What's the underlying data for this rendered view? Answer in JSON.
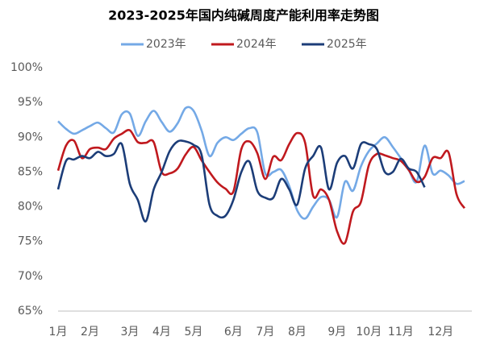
{
  "chart_data": {
    "type": "line",
    "title": "2023-2025年国内纯碱周度产能利用率走势图",
    "categories": [
      "1月",
      null,
      null,
      null,
      "2月",
      null,
      null,
      null,
      null,
      "3月",
      null,
      null,
      null,
      "4月",
      null,
      null,
      null,
      "5月",
      null,
      null,
      null,
      null,
      "6月",
      null,
      null,
      null,
      "7月",
      null,
      null,
      null,
      "8月",
      null,
      null,
      null,
      null,
      "9月",
      null,
      null,
      null,
      "10月",
      null,
      null,
      null,
      "11月",
      null,
      null,
      null,
      null,
      "12月",
      null,
      null,
      null
    ],
    "series": [
      {
        "name": "2023年",
        "color": "#74a9e6",
        "values": [
          92.3,
          91.2,
          90.5,
          91.0,
          91.6,
          92.1,
          91.3,
          90.7,
          93.3,
          93.4,
          90.2,
          92.3,
          93.8,
          92.2,
          90.8,
          92.0,
          94.2,
          93.8,
          91.0,
          87.3,
          89.2,
          90.0,
          89.6,
          90.5,
          91.3,
          90.7,
          84.8,
          85.0,
          85.3,
          83.0,
          79.5,
          78.3,
          80.0,
          81.4,
          81.0,
          78.5,
          83.6,
          82.3,
          85.8,
          88.0,
          89.1,
          90.0,
          88.6,
          87.0,
          85.3,
          83.6,
          88.8,
          84.8,
          85.2,
          84.5,
          83.3,
          83.7
        ]
      },
      {
        "name": "2024年",
        "color": "#c0191e",
        "values": [
          85.2,
          88.8,
          89.5,
          87.0,
          88.3,
          88.5,
          88.3,
          89.8,
          90.5,
          91.0,
          89.3,
          89.2,
          89.3,
          85.0,
          84.8,
          85.5,
          87.5,
          88.6,
          86.7,
          85.0,
          83.5,
          82.6,
          82.2,
          88.3,
          89.4,
          87.7,
          84.0,
          87.2,
          86.7,
          89.0,
          90.6,
          89.2,
          81.6,
          82.5,
          81.0,
          76.5,
          74.8,
          79.3,
          80.7,
          86.0,
          87.6,
          87.4,
          87.0,
          86.6,
          85.3,
          83.6,
          84.3,
          87.0,
          87.0,
          87.8,
          81.8,
          79.8
        ]
      },
      {
        "name": "2025年",
        "color": "#1c3d78",
        "values": [
          82.5,
          86.6,
          86.8,
          87.3,
          87.0,
          87.9,
          87.3,
          87.6,
          89.0,
          83.3,
          81.0,
          77.9,
          82.5,
          85.0,
          88.0,
          89.4,
          89.4,
          88.9,
          87.5,
          80.3,
          78.7,
          78.7,
          81.0,
          85.0,
          86.5,
          82.3,
          81.3,
          81.3,
          84.0,
          82.5,
          80.3,
          85.5,
          87.3,
          88.5,
          82.5,
          86.3,
          87.3,
          85.5,
          89.0,
          89.0,
          88.3,
          85.0,
          85.0,
          86.9,
          85.5,
          85.0,
          82.8,
          null,
          null,
          null,
          null,
          null
        ]
      }
    ],
    "ylim": [
      65,
      100
    ],
    "yticks": [
      {
        "value": 65,
        "label": "65%"
      },
      {
        "value": 70,
        "label": "70%"
      },
      {
        "value": 75,
        "label": "75%"
      },
      {
        "value": 80,
        "label": "80%"
      },
      {
        "value": 85,
        "label": "85%"
      },
      {
        "value": 90,
        "label": "90%"
      },
      {
        "value": 95,
        "label": "95%"
      },
      {
        "value": 100,
        "label": "100%"
      }
    ],
    "grid": false,
    "legend": "top"
  }
}
